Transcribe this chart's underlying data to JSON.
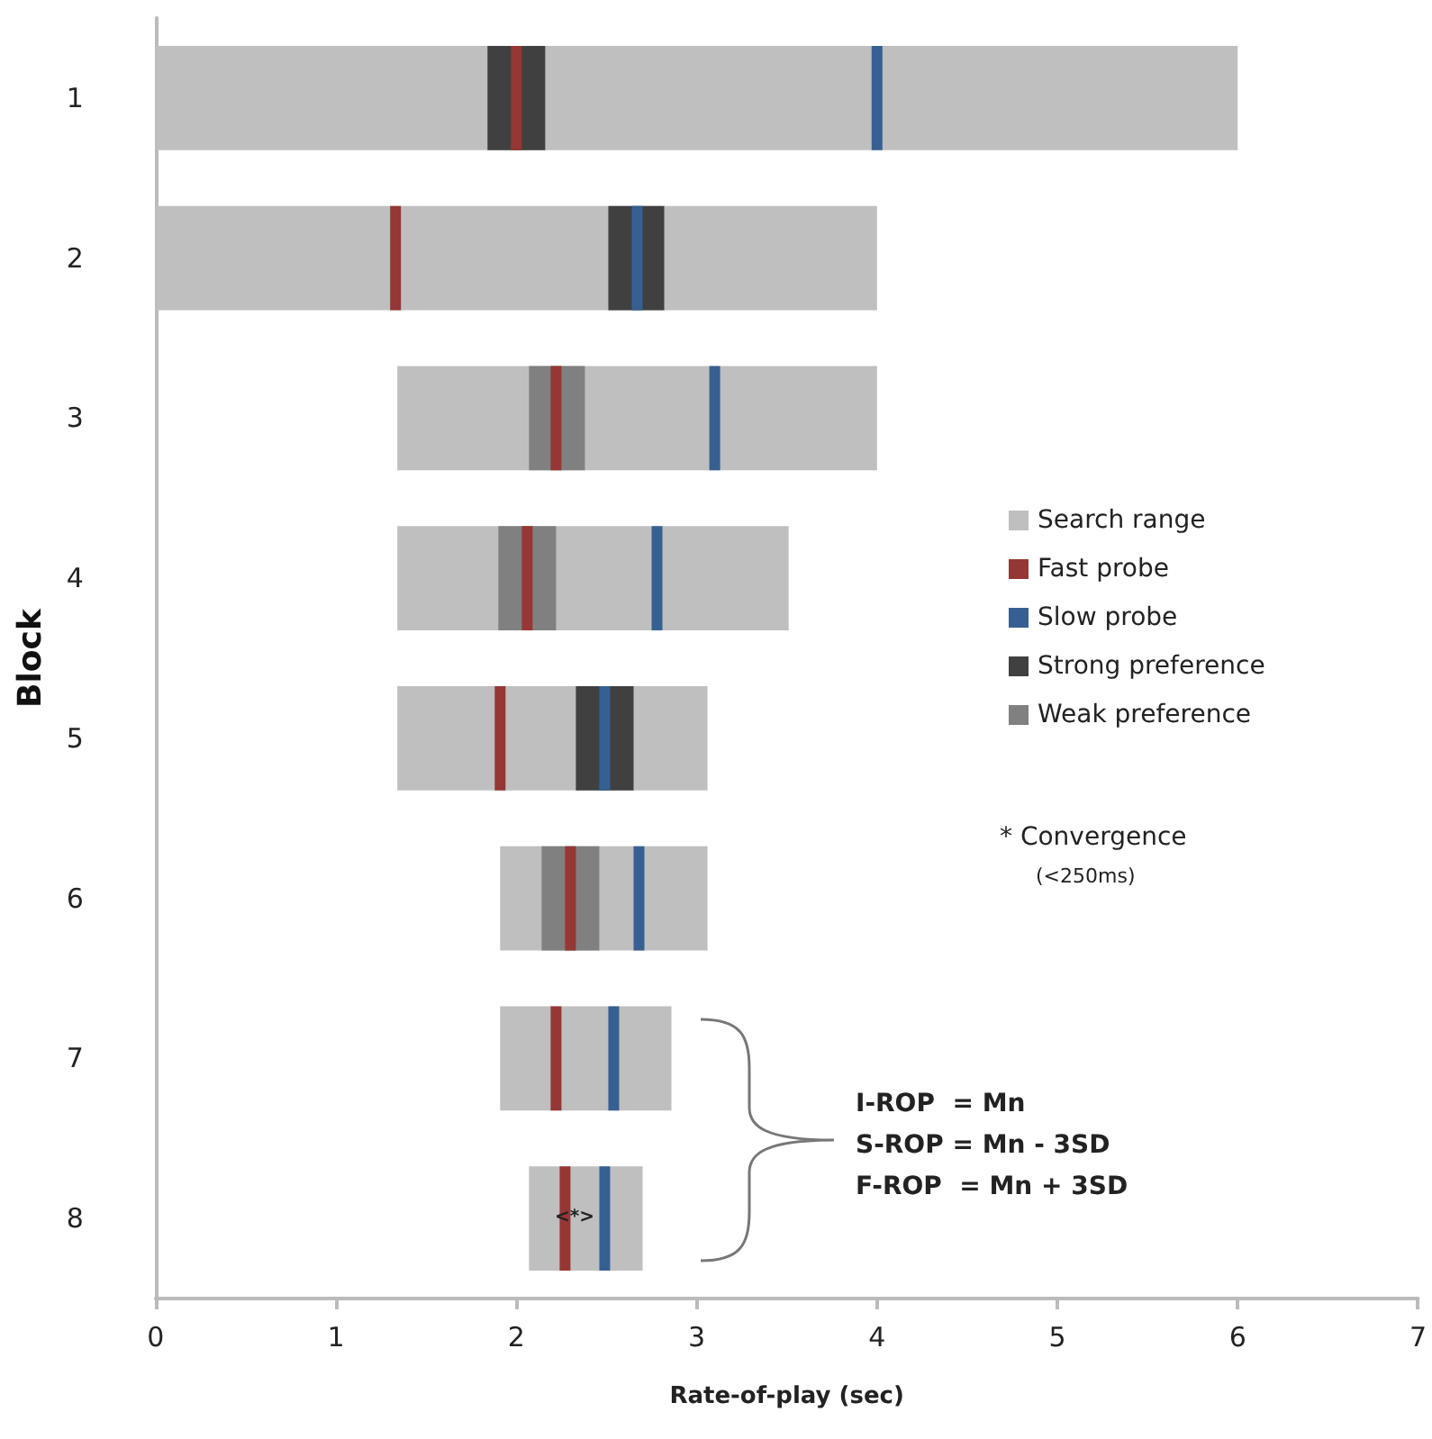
{
  "chart_data": {
    "type": "bar",
    "orientation": "horizontal",
    "xlabel": "Rate-of-play (sec)",
    "ylabel": "Block",
    "categories": [
      "1",
      "2",
      "3",
      "4",
      "5",
      "6",
      "7",
      "8"
    ],
    "xlim": [
      0,
      7
    ],
    "xticks": [
      0,
      1,
      2,
      3,
      4,
      5,
      6,
      7
    ],
    "grid": false,
    "legend": "right",
    "series": [
      {
        "name": "Search range",
        "color": "#bfbfbf",
        "base": [
          0,
          0,
          1.34,
          1.34,
          1.34,
          1.91,
          1.91,
          2.07
        ],
        "values": [
          6,
          4,
          2.66,
          2.17,
          1.72,
          1.15,
          0.95,
          0.63
        ]
      },
      {
        "name": "Fast probe",
        "color": "#953735",
        "base": [
          1.97,
          1.3,
          2.19,
          2.03,
          1.88,
          2.27,
          2.19,
          2.24
        ],
        "values": [
          0.06,
          0.06,
          0.06,
          0.06,
          0.06,
          0.06,
          0.06,
          0.06
        ]
      },
      {
        "name": "Slow probe",
        "color": "#376092",
        "base": [
          3.97,
          2.64,
          3.07,
          2.75,
          2.46,
          2.65,
          2.51,
          2.46
        ],
        "values": [
          0.06,
          0.06,
          0.06,
          0.06,
          0.06,
          0.06,
          0.06,
          0.06
        ]
      },
      {
        "name": "Strong preference",
        "color": "#404040",
        "base": [
          1.84,
          2.51,
          null,
          null,
          2.33,
          null,
          null,
          null
        ],
        "values": [
          0.32,
          0.31,
          null,
          null,
          0.32,
          null,
          null,
          null
        ]
      },
      {
        "name": "Weak preference",
        "color": "#808080",
        "base": [
          null,
          null,
          2.07,
          1.9,
          null,
          2.14,
          null,
          null
        ],
        "values": [
          null,
          null,
          0.31,
          0.32,
          null,
          0.32,
          null,
          null
        ]
      }
    ],
    "annotations": [
      "<*>",
      "* Convergence",
      "(<250ms)",
      "I-ROP  = Mn",
      "S-ROP = Mn - 3SD",
      "F-ROP  = Mn + 3SD"
    ]
  }
}
